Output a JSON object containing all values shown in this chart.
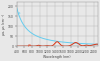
{
  "title": "",
  "xlabel": "Wavelength (nm)",
  "ylabel": "µa, µs (cm⁻¹)",
  "xlim": [
    400,
    2500
  ],
  "ylim": [
    0,
    220
  ],
  "yticks": [
    0,
    50,
    100,
    150,
    200
  ],
  "xticks": [
    400,
    600,
    800,
    1000,
    1200,
    1400,
    1600,
    1800,
    2000,
    2200,
    2400
  ],
  "background_color": "#e8e8e8",
  "plot_bg_color": "#e8e8e8",
  "grid_color": "#aaaaaa",
  "scatter_color": "#66ccee",
  "absorb_color": "#dd3311",
  "scatter_label": "µs",
  "absorb_label": "µa",
  "tick_color": "#444444",
  "label_color": "#444444"
}
